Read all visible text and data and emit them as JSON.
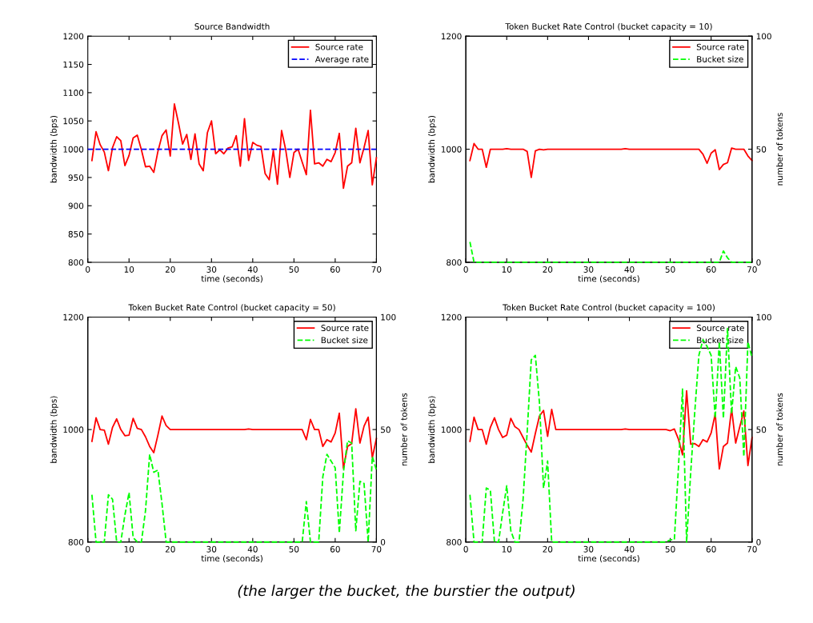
{
  "chart_data": [
    {
      "type": "line",
      "title": "Source Bandwidth",
      "xlabel": "time (seconds)",
      "ylabel": "bandwidth (bps)",
      "legend": "top right",
      "grid": false,
      "x": [
        1,
        2,
        3,
        4,
        5,
        6,
        7,
        8,
        9,
        10,
        11,
        12,
        13,
        14,
        15,
        16,
        17,
        18,
        19,
        20,
        21,
        22,
        23,
        24,
        25,
        26,
        27,
        28,
        29,
        30,
        31,
        32,
        33,
        34,
        35,
        36,
        37,
        38,
        39,
        40,
        41,
        42,
        43,
        44,
        45,
        46,
        47,
        48,
        49,
        50,
        51,
        52,
        53,
        54,
        55,
        56,
        57,
        58,
        59,
        60,
        61,
        62,
        63,
        64,
        65,
        66,
        67,
        68,
        69,
        70
      ],
      "xlim": [
        0,
        70
      ],
      "xticks": [
        0,
        10,
        20,
        30,
        40,
        50,
        60,
        70
      ],
      "ylim": [
        800,
        1200
      ],
      "yticks": [
        800,
        850,
        900,
        950,
        1000,
        1050,
        1100,
        1150,
        1200
      ],
      "series": [
        {
          "name": "Source rate",
          "color": "#ff0000",
          "line_style": "solid",
          "values": [
            980,
            1031,
            1008,
            995,
            962,
            1003,
            1022,
            1015,
            971,
            989,
            1020,
            1025,
            999,
            969,
            970,
            959,
            996,
            1024,
            1034,
            988,
            1080,
            1046,
            1009,
            1026,
            982,
            1027,
            974,
            962,
            1029,
            1050,
            992,
            999,
            992,
            1002,
            1004,
            1024,
            970,
            1054,
            980,
            1012,
            1007,
            1005,
            957,
            946,
            998,
            938,
            1033,
            999,
            950,
            994,
            1000,
            977,
            955,
            1069,
            974,
            976,
            970,
            982,
            978,
            994,
            1028,
            931,
            970,
            976,
            1037,
            976,
            1003,
            1033,
            937,
            985
          ]
        },
        {
          "name": "Average rate",
          "color": "#0000ff",
          "line_style": "dashed",
          "x": [
            0,
            70
          ],
          "values": [
            1000,
            1000
          ]
        }
      ]
    },
    {
      "type": "line",
      "title": "Token Bucket Rate Control (bucket capacity = 10)",
      "xlabel": "time (seconds)",
      "ylabel": "bandwidth (bps)",
      "y2label": "number of tokens",
      "legend": "top right",
      "grid": false,
      "x": [
        1,
        2,
        3,
        4,
        5,
        6,
        7,
        8,
        9,
        10,
        11,
        12,
        13,
        14,
        15,
        16,
        17,
        18,
        19,
        20,
        21,
        22,
        23,
        24,
        25,
        26,
        27,
        28,
        29,
        30,
        31,
        32,
        33,
        34,
        35,
        36,
        37,
        38,
        39,
        40,
        41,
        42,
        43,
        44,
        45,
        46,
        47,
        48,
        49,
        50,
        51,
        52,
        53,
        54,
        55,
        56,
        57,
        58,
        59,
        60,
        61,
        62,
        63,
        64,
        65,
        66,
        67,
        68,
        69,
        70
      ],
      "xlim": [
        0,
        70
      ],
      "xticks": [
        0,
        10,
        20,
        30,
        40,
        50,
        60,
        70
      ],
      "ylim": [
        800,
        1200
      ],
      "yticks": [
        800,
        1000,
        1200
      ],
      "y2lim": [
        0,
        100
      ],
      "y2ticks": [
        0,
        50,
        100
      ],
      "series": [
        {
          "name": "Source rate",
          "color": "#ff0000",
          "line_style": "solid",
          "values": [
            980,
            1010,
            1000,
            1000,
            968,
            1000,
            1000,
            1000,
            1000,
            1001,
            1000,
            1000,
            1000,
            1000,
            996,
            950,
            997,
            1000,
            999,
            1000,
            1000,
            1000,
            1000,
            1000,
            1000,
            1000,
            1000,
            1000,
            1000,
            1000,
            1000,
            1000,
            1000,
            1000,
            1000,
            1000,
            1000,
            1000,
            1001,
            1000,
            1000,
            1000,
            1000,
            1000,
            1000,
            1000,
            1000,
            1000,
            1000,
            1000,
            1000,
            1000,
            1000,
            1000,
            1000,
            1000,
            1000,
            991,
            975,
            993,
            999,
            964,
            973,
            976,
            1002,
            1000,
            1000,
            1000,
            988,
            980
          ]
        },
        {
          "name": "Bucket size",
          "color": "#00ff00",
          "line_style": "dashed",
          "axis": "y2",
          "values": [
            9,
            0,
            0,
            0,
            0,
            0,
            0,
            0,
            0,
            0,
            0,
            0,
            0,
            0,
            0,
            0,
            0,
            0,
            0,
            0,
            0,
            0,
            0,
            0,
            0,
            0,
            0,
            0,
            0,
            0,
            0,
            0,
            0,
            0,
            0,
            0,
            0,
            0,
            0,
            0,
            0,
            0,
            0,
            0,
            0,
            0,
            0,
            0,
            0,
            0,
            0,
            0,
            0,
            0,
            0,
            0,
            0,
            0,
            0,
            0,
            0,
            0,
            5,
            2,
            0,
            0,
            0,
            0,
            0,
            0
          ]
        }
      ]
    },
    {
      "type": "line",
      "title": "Token Bucket Rate Control (bucket capacity = 50)",
      "xlabel": "time (seconds)",
      "ylabel": "bandwidth (bps)",
      "y2label": "number of tokens",
      "legend": "top right",
      "grid": false,
      "x": [
        1,
        2,
        3,
        4,
        5,
        6,
        7,
        8,
        9,
        10,
        11,
        12,
        13,
        14,
        15,
        16,
        17,
        18,
        19,
        20,
        21,
        22,
        23,
        24,
        25,
        26,
        27,
        28,
        29,
        30,
        31,
        32,
        33,
        34,
        35,
        36,
        37,
        38,
        39,
        40,
        41,
        42,
        43,
        44,
        45,
        46,
        47,
        48,
        49,
        50,
        51,
        52,
        53,
        54,
        55,
        56,
        57,
        58,
        59,
        60,
        61,
        62,
        63,
        64,
        65,
        66,
        67,
        68,
        69,
        70
      ],
      "xlim": [
        0,
        70
      ],
      "xticks": [
        0,
        10,
        20,
        30,
        40,
        50,
        60,
        70
      ],
      "ylim": [
        800,
        1200
      ],
      "yticks": [
        800,
        1000,
        1200
      ],
      "y2lim": [
        0,
        100
      ],
      "y2ticks": [
        0,
        50,
        100
      ],
      "series": [
        {
          "name": "Source rate",
          "color": "#ff0000",
          "line_style": "solid",
          "values": [
            979,
            1021,
            1000,
            999,
            974,
            1004,
            1019,
            1000,
            989,
            990,
            1020,
            1002,
            1000,
            987,
            970,
            959,
            990,
            1024,
            1007,
            1000,
            1000,
            1000,
            1000,
            1000,
            1000,
            1000,
            1000,
            1000,
            1000,
            1000,
            1000,
            1000,
            1000,
            1000,
            1000,
            1000,
            1000,
            1000,
            1001,
            1000,
            1000,
            1000,
            1000,
            1000,
            1000,
            1000,
            1000,
            1000,
            1000,
            1000,
            1000,
            1000,
            982,
            1018,
            1000,
            1000,
            970,
            982,
            978,
            994,
            1029,
            931,
            970,
            975,
            1037,
            976,
            1006,
            1022,
            950,
            984
          ]
        },
        {
          "name": "Bucket size",
          "color": "#00ff00",
          "line_style": "dashed",
          "axis": "y2",
          "values": [
            21,
            0,
            0,
            0,
            21,
            19,
            0,
            0,
            12,
            22,
            2,
            0,
            0,
            14,
            39,
            31,
            32,
            17,
            0,
            0,
            0,
            0,
            0,
            0,
            0,
            0,
            0,
            0,
            0,
            0,
            0,
            0,
            0,
            0,
            0,
            0,
            0,
            0,
            0,
            0,
            0,
            0,
            0,
            0,
            0,
            0,
            0,
            0,
            0,
            0,
            0,
            0,
            18,
            0,
            0,
            0,
            29,
            39,
            36,
            33,
            4,
            31,
            45,
            44,
            5,
            27,
            26,
            0,
            38,
            32
          ]
        }
      ]
    },
    {
      "type": "line",
      "title": "Token Bucket Rate Control (bucket capacity = 100)",
      "xlabel": "time (seconds)",
      "ylabel": "bandwidth (bps)",
      "y2label": "number of tokens",
      "legend": "top right",
      "grid": false,
      "annotations": [
        "(the larger the bucket, the burstier the output)"
      ],
      "x": [
        1,
        2,
        3,
        4,
        5,
        6,
        7,
        8,
        9,
        10,
        11,
        12,
        13,
        14,
        15,
        16,
        17,
        18,
        19,
        20,
        21,
        22,
        23,
        24,
        25,
        26,
        27,
        28,
        29,
        30,
        31,
        32,
        33,
        34,
        35,
        36,
        37,
        38,
        39,
        40,
        41,
        42,
        43,
        44,
        45,
        46,
        47,
        48,
        49,
        50,
        51,
        52,
        53,
        54,
        55,
        56,
        57,
        58,
        59,
        60,
        61,
        62,
        63,
        64,
        65,
        66,
        67,
        68,
        69,
        70
      ],
      "xlim": [
        0,
        70
      ],
      "xticks": [
        0,
        10,
        20,
        30,
        40,
        50,
        60,
        70
      ],
      "ylim": [
        800,
        1200
      ],
      "yticks": [
        800,
        1000,
        1200
      ],
      "y2lim": [
        0,
        100
      ],
      "y2ticks": [
        0,
        50,
        100
      ],
      "series": [
        {
          "name": "Source rate",
          "color": "#ff0000",
          "line_style": "solid",
          "values": [
            979,
            1022,
            1000,
            1000,
            974,
            1004,
            1021,
            1000,
            986,
            990,
            1020,
            1005,
            1000,
            986,
            972,
            960,
            993,
            1024,
            1034,
            988,
            1036,
            1000,
            1000,
            1000,
            1000,
            1000,
            1000,
            1000,
            1000,
            1000,
            1000,
            1000,
            1000,
            1000,
            1000,
            1000,
            1000,
            1000,
            1001,
            1000,
            1000,
            1000,
            1000,
            1000,
            1000,
            1000,
            1000,
            1000,
            1000,
            998,
            1001,
            983,
            955,
            1069,
            974,
            975,
            970,
            982,
            978,
            994,
            1028,
            930,
            970,
            976,
            1037,
            976,
            1005,
            1033,
            936,
            986
          ]
        },
        {
          "name": "Bucket size",
          "color": "#00ff00",
          "line_style": "dashed",
          "axis": "y2",
          "values": [
            21,
            0,
            0,
            0,
            24,
            23,
            0,
            0,
            13,
            25,
            5,
            0,
            0,
            19,
            49,
            81,
            83,
            62,
            24,
            36,
            0,
            0,
            0,
            0,
            0,
            0,
            0,
            0,
            0,
            0,
            0,
            0,
            0,
            0,
            0,
            0,
            0,
            0,
            0,
            0,
            0,
            0,
            0,
            0,
            0,
            0,
            0,
            0,
            0,
            1,
            1,
            33,
            68,
            0,
            31,
            58,
            83,
            90,
            87,
            83,
            55,
            89,
            55,
            95,
            57,
            78,
            73,
            38,
            89,
            82
          ]
        }
      ]
    }
  ]
}
